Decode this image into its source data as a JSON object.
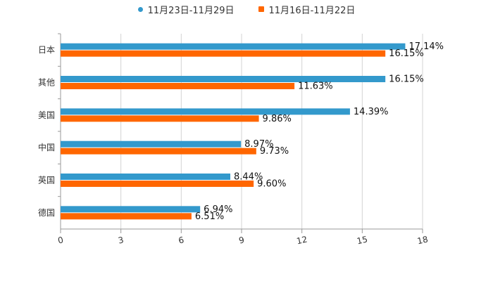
{
  "chart_data": {
    "type": "bar",
    "orientation": "horizontal",
    "title": "",
    "xlabel": "",
    "ylabel": "",
    "categories": [
      "日本",
      "其他",
      "美国",
      "中国",
      "英国",
      "德国"
    ],
    "series": [
      {
        "name": "11月23日-11月29日",
        "color": "#3399cc",
        "values": [
          17.14,
          16.15,
          14.39,
          8.97,
          8.44,
          6.94
        ],
        "labels": [
          "17.14%",
          "16.15%",
          "14.39%",
          "8.97%",
          "8.44%",
          "6.94%"
        ]
      },
      {
        "name": "11月16日-11月22日",
        "color": "#ff6600",
        "values": [
          16.15,
          11.63,
          9.86,
          9.73,
          9.6,
          6.51
        ],
        "labels": [
          "16.15%",
          "11.63%",
          "9.86%",
          "9.73%",
          "9.60%",
          "6.51%"
        ]
      }
    ],
    "xlim": [
      0,
      18
    ],
    "xticks": [
      0,
      3,
      6,
      9,
      12,
      15,
      18
    ],
    "xtick_labels": [
      "0",
      "3",
      "6",
      "9",
      "12",
      "15",
      "18"
    ],
    "grid": true,
    "legend_position": "top-center"
  }
}
